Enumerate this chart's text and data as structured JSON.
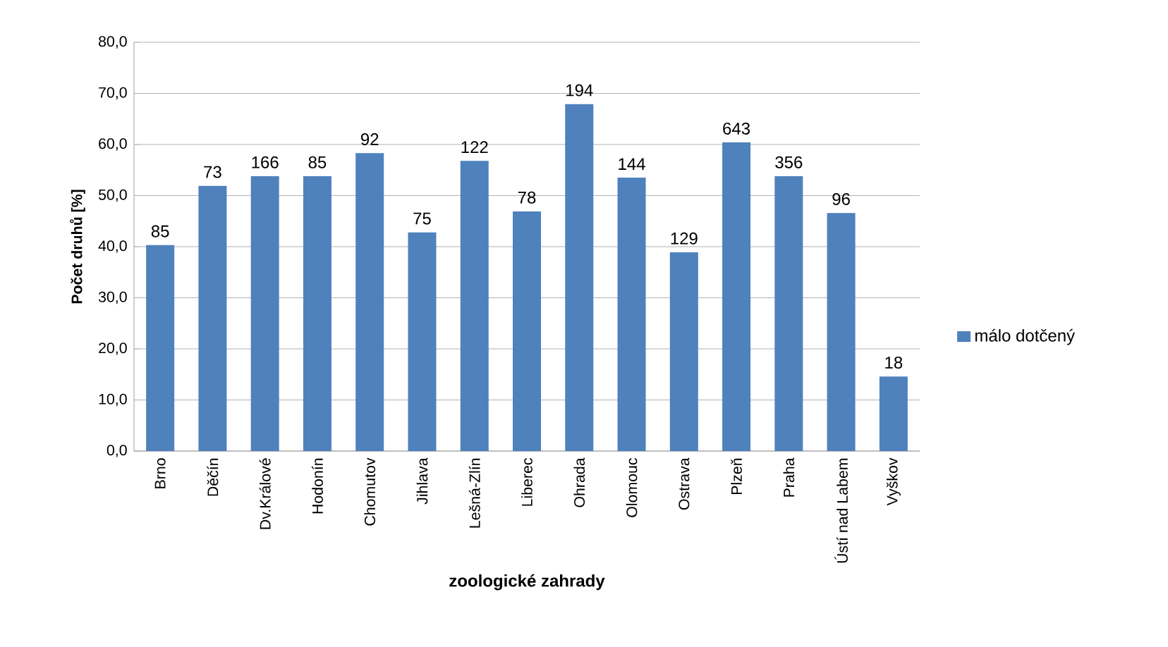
{
  "chart_data": {
    "type": "bar",
    "xlabel": "zoologické zahrady",
    "ylabel": "Počet druhů [%]",
    "categories": [
      "Brno",
      "Děčín",
      "Dv.Králové",
      "Hodonín",
      "Chomutov",
      "Jihlava",
      "Lešná-Zlín",
      "Liberec",
      "Ohrada",
      "Olomouc",
      "Ostrava",
      "Plzeň",
      "Praha",
      "Ústí nad Labem",
      "Vyškov"
    ],
    "series": [
      {
        "name": "málo dotčený",
        "color": "#4f81bd",
        "values": [
          40.3,
          51.9,
          53.8,
          53.8,
          58.3,
          42.8,
          56.8,
          46.9,
          67.9,
          53.5,
          38.9,
          60.4,
          53.8,
          46.6,
          14.6
        ]
      }
    ],
    "annotations": [
      {
        "text": "85",
        "x": "Brno",
        "y": 40.3
      },
      {
        "text": "73",
        "x": "Děčín",
        "y": 51.9
      },
      {
        "text": "166",
        "x": "Dv.Králové",
        "y": 53.8
      },
      {
        "text": "85",
        "x": "Hodonín",
        "y": 53.8
      },
      {
        "text": "92",
        "x": "Chomutov",
        "y": 58.3
      },
      {
        "text": "75",
        "x": "Jihlava",
        "y": 42.8
      },
      {
        "text": "122",
        "x": "Lešná-Zlín",
        "y": 56.8
      },
      {
        "text": "78",
        "x": "Liberec",
        "y": 46.9
      },
      {
        "text": "194",
        "x": "Ohrada",
        "y": 67.9
      },
      {
        "text": "144",
        "x": "Olomouc",
        "y": 53.5
      },
      {
        "text": "129",
        "x": "Ostrava",
        "y": 38.9
      },
      {
        "text": "643",
        "x": "Plzeň",
        "y": 60.4
      },
      {
        "text": "356",
        "x": "Praha",
        "y": 53.8
      },
      {
        "text": "96",
        "x": "Ústí nad Labem",
        "y": 46.6
      },
      {
        "text": "18",
        "x": "Vyškov",
        "y": 14.6
      }
    ],
    "ylim": [
      0,
      80
    ],
    "yticks": [
      {
        "value": 0,
        "label": "0,0"
      },
      {
        "value": 10,
        "label": "10,0"
      },
      {
        "value": 20,
        "label": "20,0"
      },
      {
        "value": 30,
        "label": "30,0"
      },
      {
        "value": 40,
        "label": "40,0"
      },
      {
        "value": 50,
        "label": "50,0"
      },
      {
        "value": 60,
        "label": "60,0"
      },
      {
        "value": 70,
        "label": "70,0"
      },
      {
        "value": 80,
        "label": "80,0"
      }
    ],
    "grid": "y",
    "legend": "right"
  }
}
